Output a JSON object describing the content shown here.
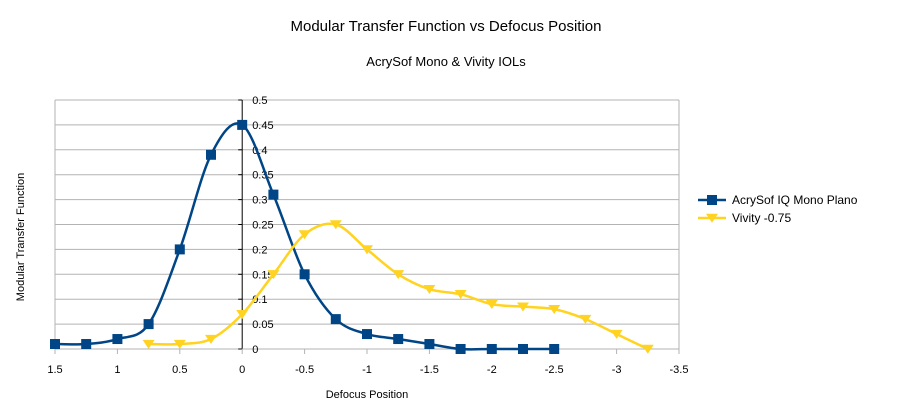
{
  "chart_data": {
    "type": "line",
    "title": "Modular Transfer Function vs Defocus Position",
    "subtitle": "AcrySof Mono & Vivity IOLs",
    "xlabel": "Defocus Position",
    "ylabel": "Modular Transfer Function",
    "xlim": [
      1.5,
      -3.5
    ],
    "ylim": [
      0,
      0.5
    ],
    "x_reversed": true,
    "x_ticks": [
      1.5,
      1,
      0.5,
      0,
      -0.5,
      -1,
      -1.5,
      -2,
      -2.5,
      -3,
      -3.5
    ],
    "x_tick_labels": [
      "1.5",
      "1",
      "0.5",
      "0",
      "-0.5",
      "-1",
      "-1.5",
      "-2",
      "-2.5",
      "-3",
      "-3.5"
    ],
    "y_ticks": [
      0,
      0.05,
      0.1,
      0.15,
      0.2,
      0.25,
      0.3,
      0.35,
      0.4,
      0.45,
      0.5
    ],
    "y_tick_labels": [
      "0",
      "0.05",
      "0.1",
      "0.15",
      "0.2",
      "0.25",
      "0.3",
      "0.35",
      "0.4",
      "0.45",
      "0.5"
    ],
    "grid": "horizontal",
    "smooth": true,
    "legend_position": "right",
    "series": [
      {
        "name": "AcrySof IQ Mono Plano",
        "color": "#004586",
        "marker": "square",
        "x": [
          1.5,
          1.25,
          1,
          0.75,
          0.5,
          0.25,
          0,
          -0.25,
          -0.5,
          -0.75,
          -1,
          -1.25,
          -1.5,
          -1.75,
          -2,
          -2.25,
          -2.5
        ],
        "y": [
          0.01,
          0.01,
          0.02,
          0.05,
          0.2,
          0.39,
          0.45,
          0.31,
          0.15,
          0.06,
          0.03,
          0.02,
          0.01,
          0,
          0,
          0,
          0
        ]
      },
      {
        "name": "Vivity -0.75",
        "color": "#ffd320",
        "marker": "triangle-down",
        "x": [
          0.75,
          0.5,
          0.25,
          0,
          -0.25,
          -0.5,
          -0.75,
          -1,
          -1.25,
          -1.5,
          -1.75,
          -2,
          -2.25,
          -2.5,
          -2.75,
          -3,
          -3.25
        ],
        "y": [
          0.01,
          0.01,
          0.02,
          0.07,
          0.15,
          0.23,
          0.25,
          0.2,
          0.15,
          0.12,
          0.11,
          0.09,
          0.085,
          0.08,
          0.06,
          0.03,
          0
        ]
      }
    ]
  }
}
